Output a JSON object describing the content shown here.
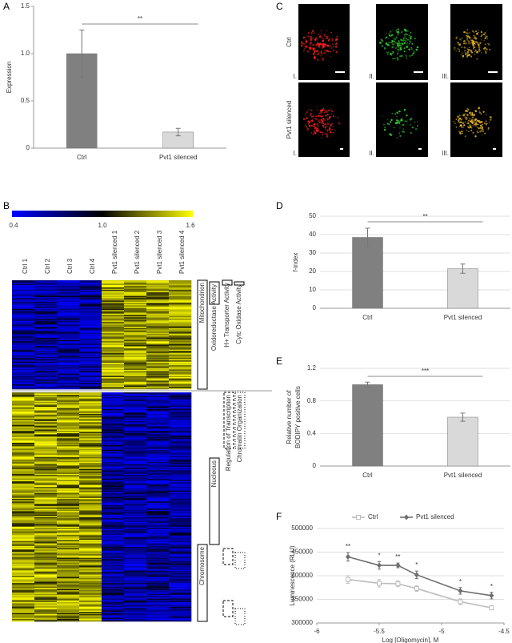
{
  "panel_labels": [
    "A",
    "B",
    "C",
    "D",
    "E",
    "F"
  ],
  "chart_data": [
    {
      "type": "bar",
      "ylabel": "Expression",
      "categories": [
        "Ctrl",
        "Pvt1 silenced"
      ],
      "values": [
        1.0,
        0.17
      ],
      "errors": [
        0.25,
        0.04
      ],
      "colors": [
        "#808080",
        "#d9d9d9"
      ],
      "ylim": [
        0,
        1.5
      ],
      "yticks": [
        0,
        0.5,
        {
          "value": 1,
          "label": "1.0"
        },
        1.5
      ],
      "grid": false,
      "annotation": "**"
    },
    {
      "type": "bar",
      "ylabel": "f-index",
      "categories": [
        "Ctrl",
        "Pvt1 silenced"
      ],
      "values": [
        38.5,
        21.5
      ],
      "errors": [
        5,
        2.5
      ],
      "colors": [
        "#808080",
        "#d9d9d9"
      ],
      "ylim": [
        0,
        50
      ],
      "yticks": [
        0,
        10,
        20,
        30,
        40,
        50
      ],
      "grid": true,
      "annotation": "**"
    },
    {
      "type": "bar",
      "ylabel": [
        "Relative number of",
        "BODIPY positive cells"
      ],
      "categories": [
        "Ctrl",
        "Pvt1 silenced"
      ],
      "values": [
        1.0,
        0.6
      ],
      "errors": [
        0.03,
        0.05
      ],
      "colors": [
        "#808080",
        "#d9d9d9"
      ],
      "ylim": [
        0,
        1.2
      ],
      "yticks": [
        0,
        0.4,
        0.8,
        1.2
      ],
      "grid": true,
      "annotation": "***"
    },
    {
      "type": "line",
      "xlabel": "Log [Oligomycin], M",
      "ylabel": "Luminescence (RLU)",
      "x": [
        -5.75,
        -5.5,
        -5.35,
        -5.2,
        -4.85,
        -4.6
      ],
      "series": [
        {
          "name": "Ctrl",
          "color": "#bdbdbd",
          "values": [
            392000,
            384000,
            383000,
            373000,
            345000,
            332000
          ],
          "errors": [
            8000,
            8000,
            6000,
            6000,
            6000,
            4000
          ]
        },
        {
          "name": "Pvt1 silenced",
          "color": "#6e6e6e",
          "values": [
            440000,
            422000,
            422000,
            402000,
            368000,
            358000
          ],
          "errors": [
            9000,
            8000,
            5000,
            8000,
            7000,
            7000
          ]
        }
      ],
      "annotations": [
        "**",
        "*",
        "**",
        "*",
        "*",
        "*"
      ],
      "xlim": [
        -6,
        -4.5
      ],
      "xticks": [
        -6,
        -5.5,
        -5,
        -4.5
      ],
      "ylim": [
        300000,
        500000
      ],
      "yticks": [
        300000,
        350000,
        400000,
        450000,
        500000
      ],
      "grid": true,
      "legend": "top"
    }
  ],
  "heatmap": {
    "colorbar_ticks": [
      "0.4",
      "1.0",
      "1.6"
    ],
    "columns": [
      "Ctrl 1",
      "Ctrl 2",
      "Ctrl 3",
      "Ctrl 4",
      "Pvt1 silenced 1",
      "Pvt1 silenced 2",
      "Pvt1 silenced 3",
      "Pvt1 silenced 4"
    ],
    "annotations": [
      "Mitochondrion",
      "Oxidoreductase Activity",
      "H+ Transporter Activity",
      "Cytc Oxidase Activity",
      "Regulation of Transcription",
      "Chromatin Organization",
      "Nucleous",
      "Chromosome"
    ]
  },
  "micrographs": {
    "rows": [
      "Ctrl",
      "Pvt1 silenced"
    ],
    "columns": [
      "I.",
      "II.",
      "III."
    ]
  }
}
